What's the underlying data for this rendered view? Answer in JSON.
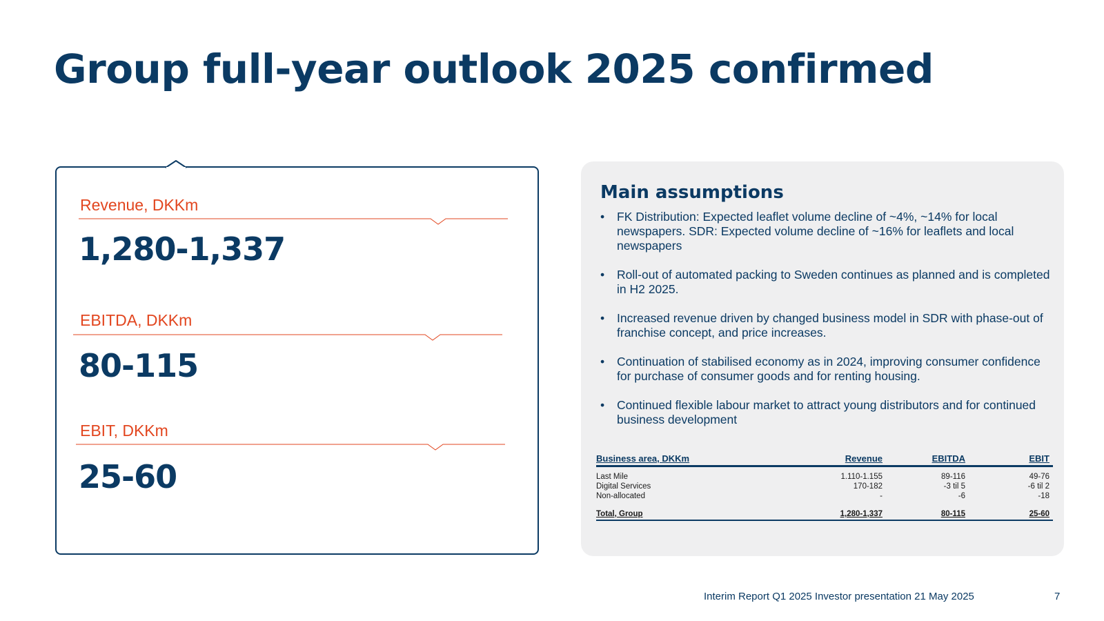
{
  "title": "Group full-year outlook 2025 confirmed",
  "kpis": [
    {
      "label": "Revenue, DKKm",
      "value": "1,280-1,337"
    },
    {
      "label": "EBITDA, DKKm",
      "value": "80-115"
    },
    {
      "label": "EBIT, DKKm",
      "value": "25-60"
    }
  ],
  "assumptions": {
    "title": "Main assumptions",
    "bullet_glyph": "•",
    "items": [
      "FK Distribution: Expected leaflet volume decline of ~4%, ~14% for local newspapers. SDR: Expected volume decline of ~16% for leaflets and local newspapers",
      "Roll-out of automated packing to Sweden continues as planned and is completed in H2 2025.",
      "Increased revenue driven by changed business model in SDR with phase-out of  franchise concept, and price increases.",
      "Continuation of stabilised economy as in 2024, improving consumer confidence for purchase of consumer goods and for renting housing.",
      "Continued flexible labour market to attract young distributors and for continued business development"
    ]
  },
  "table": {
    "headers": [
      "Business area, DKKm",
      "Revenue",
      "EBITDA",
      "EBIT"
    ],
    "rows": [
      [
        "Last Mile",
        "1.110-1.155",
        "89-116",
        "49-76"
      ],
      [
        "Digital Services",
        "170-182",
        "-3 til 5",
        "-6 til 2"
      ],
      [
        "Non-allocated",
        "-",
        "-6",
        "-18"
      ]
    ],
    "total": [
      "Total, Group",
      "1,280-1,337",
      "80-115",
      "25-60"
    ]
  },
  "footer": {
    "text": "Interim Report Q1 2025 Investor presentation 21 May 2025",
    "page": "7"
  },
  "colors": {
    "navy": "#0b3a63",
    "accent": "#e2461f",
    "panel_bg": "#efeff0"
  }
}
